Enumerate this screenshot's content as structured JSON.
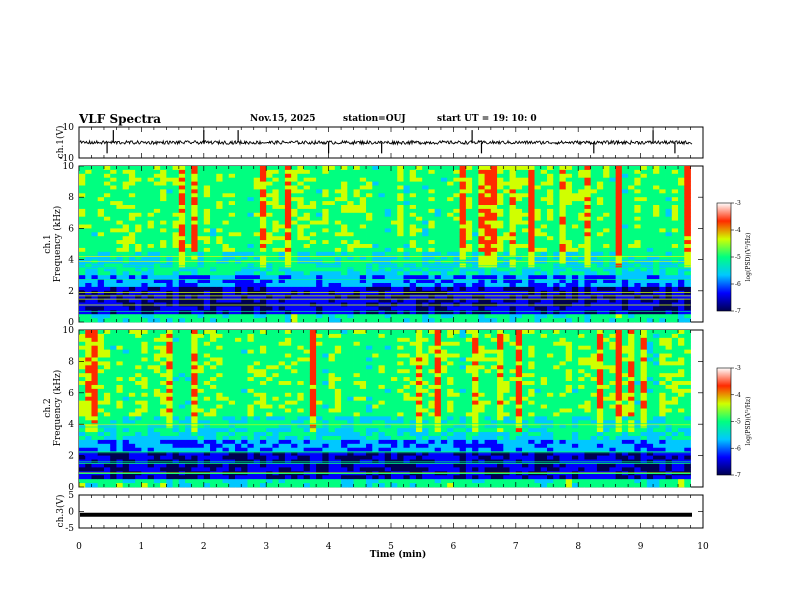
{
  "header": {
    "title": "VLF Spectra",
    "date": "Nov.15, 2025",
    "station": "station=OUJ",
    "start_ut": "start  UT =   19: 10: 0"
  },
  "colors": {
    "bar_stops": [
      "#000050",
      "#0000ff",
      "#00c8ff",
      "#00ff80",
      "#d0ff00",
      "#ff2a00",
      "#ffffff"
    ],
    "trace": "#000000"
  },
  "chart_data": [
    {
      "type": "line",
      "name": "ch1-waveform",
      "ylabel": "ch.1(V)",
      "ylim": [
        -10,
        10
      ],
      "y_ticks": [
        "10",
        "-10"
      ],
      "x_range": [
        0,
        10
      ],
      "baseline": 0.0,
      "spike_times": [
        0.45,
        0.55,
        2.0,
        2.55,
        4.0,
        4.85,
        6.3,
        6.45,
        8.25,
        9.2,
        9.55
      ]
    },
    {
      "type": "heatmap",
      "name": "ch1-spectrogram",
      "ylabel": "Frequency (kHz)",
      "yprefix": "ch.1",
      "ylim": [
        0,
        10
      ],
      "y_ticks": [
        "0",
        "2",
        "4",
        "6",
        "8",
        "10"
      ],
      "x_range": [
        0,
        9.8
      ],
      "colorbar": {
        "label": "log(PSD)(V²/Hz)",
        "range": [
          -7,
          -3
        ],
        "ticks": [
          "-3",
          "-4",
          "-5",
          "-6",
          "-7"
        ]
      }
    },
    {
      "type": "heatmap",
      "name": "ch2-spectrogram",
      "ylabel": "Frequency (kHz)",
      "yprefix": "ch.2",
      "ylim": [
        0,
        10
      ],
      "y_ticks": [
        "0",
        "2",
        "4",
        "6",
        "8",
        "10"
      ],
      "x_range": [
        0,
        9.8
      ],
      "colorbar": {
        "label": "log(PSD)(V²/Hz)",
        "range": [
          -7,
          -3
        ],
        "ticks": [
          "-3",
          "-4",
          "-5",
          "-6",
          "-7"
        ]
      }
    },
    {
      "type": "line",
      "name": "ch3-waveform",
      "ylabel": "ch.3(V)",
      "ylim": [
        -5,
        5
      ],
      "y_ticks": [
        "5",
        "0",
        "-5"
      ],
      "x_range": [
        0,
        10
      ],
      "baseline": -1.0
    }
  ],
  "x_axis": {
    "label": "Time  (min)",
    "ticks": [
      "0",
      "1",
      "2",
      "3",
      "4",
      "5",
      "6",
      "7",
      "8",
      "9",
      "10"
    ],
    "range": [
      0,
      10
    ]
  }
}
